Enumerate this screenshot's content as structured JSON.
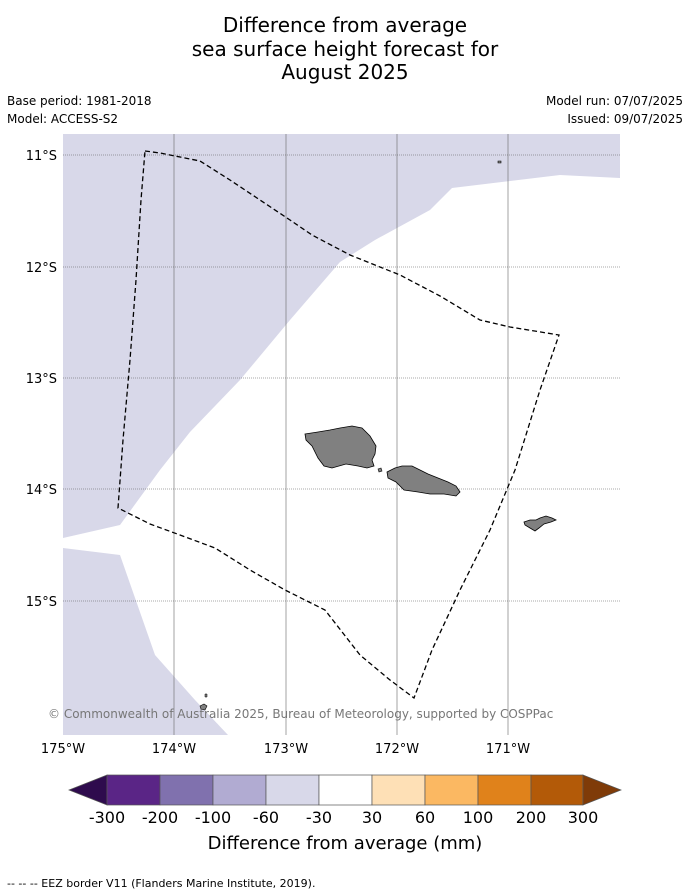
{
  "title": {
    "line1": "Difference from average",
    "line2": "sea surface height forecast for",
    "line3": "August 2025"
  },
  "meta": {
    "base_period": "Base period: 1981-2018",
    "model": "Model: ACCESS-S2",
    "model_run": "Model run: 07/07/2025",
    "issued": "Issued: 09/07/2025"
  },
  "map": {
    "lat_labels": [
      "11°S",
      "12°S",
      "13°S",
      "14°S",
      "15°S"
    ],
    "lon_labels": [
      "175°W",
      "174°W",
      "173°W",
      "172°W",
      "171°W"
    ],
    "copyright": "© Commonwealth of Australia 2025, Bureau of Meteorology, supported by COSPPac",
    "colors": {
      "anomaly_neg_30_60": "#d8d8e9",
      "land": "#808080",
      "eez": "#000000"
    }
  },
  "colorbar": {
    "title": "Difference from average (mm)",
    "ticks": [
      "-300",
      "-200",
      "-100",
      "-60",
      "-30",
      "30",
      "60",
      "100",
      "200",
      "300"
    ],
    "colors": [
      "#2e0b4d",
      "#5a2586",
      "#8071ae",
      "#b1abd2",
      "#d8d8e9",
      "#ffffff",
      "#fee0b6",
      "#fbb862",
      "#e0821b",
      "#b35a08",
      "#7f3b08"
    ]
  },
  "footer": {
    "legend_text": "--  --  -- EEZ border V11 (Flanders Marine Institute, 2019)."
  }
}
